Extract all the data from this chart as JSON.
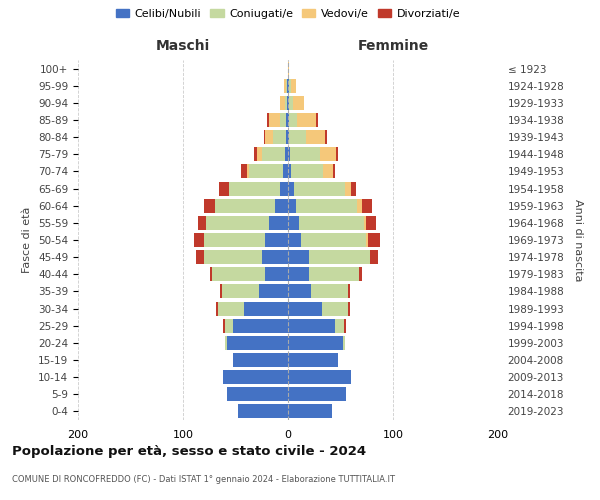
{
  "age_groups": [
    "0-4",
    "5-9",
    "10-14",
    "15-19",
    "20-24",
    "25-29",
    "30-34",
    "35-39",
    "40-44",
    "45-49",
    "50-54",
    "55-59",
    "60-64",
    "65-69",
    "70-74",
    "75-79",
    "80-84",
    "85-89",
    "90-94",
    "95-99",
    "100+"
  ],
  "birth_years": [
    "2019-2023",
    "2014-2018",
    "2009-2013",
    "2004-2008",
    "1999-2003",
    "1994-1998",
    "1989-1993",
    "1984-1988",
    "1979-1983",
    "1974-1978",
    "1969-1973",
    "1964-1968",
    "1959-1963",
    "1954-1958",
    "1949-1953",
    "1944-1948",
    "1939-1943",
    "1934-1938",
    "1929-1933",
    "1924-1928",
    "≤ 1923"
  ],
  "colors": {
    "celibi": "#4472c4",
    "coniugati": "#c5d9a0",
    "vedovi": "#f5c87a",
    "divorziati": "#c0392b"
  },
  "male": {
    "celibi": [
      48,
      58,
      62,
      52,
      58,
      52,
      42,
      28,
      22,
      25,
      22,
      18,
      12,
      8,
      5,
      3,
      2,
      2,
      1,
      1,
      0
    ],
    "coniugati": [
      0,
      0,
      0,
      0,
      2,
      8,
      25,
      35,
      50,
      55,
      58,
      60,
      58,
      48,
      32,
      22,
      12,
      6,
      2,
      1,
      0
    ],
    "vedovi": [
      0,
      0,
      0,
      0,
      0,
      0,
      0,
      0,
      0,
      0,
      0,
      0,
      0,
      0,
      2,
      5,
      8,
      10,
      5,
      2,
      0
    ],
    "divorziati": [
      0,
      0,
      0,
      0,
      0,
      2,
      2,
      2,
      2,
      8,
      10,
      8,
      10,
      10,
      6,
      2,
      1,
      2,
      0,
      0,
      0
    ]
  },
  "female": {
    "celibi": [
      42,
      55,
      60,
      48,
      52,
      45,
      32,
      22,
      20,
      20,
      12,
      10,
      8,
      6,
      3,
      2,
      1,
      1,
      1,
      1,
      0
    ],
    "coniugati": [
      0,
      0,
      0,
      0,
      2,
      8,
      25,
      35,
      48,
      58,
      62,
      62,
      58,
      48,
      30,
      28,
      16,
      8,
      4,
      2,
      0
    ],
    "vedovi": [
      0,
      0,
      0,
      0,
      0,
      0,
      0,
      0,
      0,
      0,
      2,
      2,
      4,
      6,
      10,
      16,
      18,
      18,
      10,
      5,
      1
    ],
    "divorziati": [
      0,
      0,
      0,
      0,
      0,
      2,
      2,
      2,
      2,
      8,
      12,
      10,
      10,
      5,
      2,
      2,
      2,
      2,
      0,
      0,
      0
    ]
  },
  "title": "Popolazione per età, sesso e stato civile - 2024",
  "subtitle": "COMUNE DI RONCOFREDDO (FC) - Dati ISTAT 1° gennaio 2024 - Elaborazione TUTTITALIA.IT",
  "xlabel_left": "Maschi",
  "xlabel_right": "Femmine",
  "ylabel_left": "Fasce di età",
  "ylabel_right": "Anni di nascita",
  "xlim": 200,
  "legend_labels": [
    "Celibi/Nubili",
    "Coniugati/e",
    "Vedovi/e",
    "Divorziati/e"
  ],
  "background_color": "#ffffff",
  "grid_color": "#cccccc"
}
